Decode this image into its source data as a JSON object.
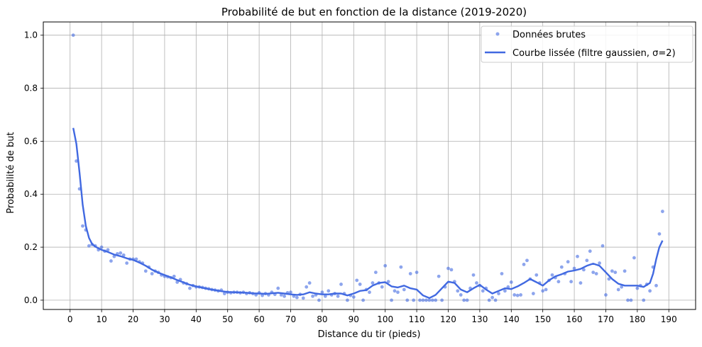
{
  "chart_data": {
    "type": "scatter",
    "title": "Probabilité de but en fonction de la distance (2019-2020)",
    "xlabel": "Distance du tir (pieds)",
    "ylabel": "Probabilité de but",
    "xlim": [
      -8.5,
      198.5
    ],
    "ylim": [
      -0.035,
      1.05
    ],
    "xticks": [
      0,
      10,
      20,
      30,
      40,
      50,
      60,
      70,
      80,
      90,
      100,
      110,
      120,
      130,
      140,
      150,
      160,
      170,
      180,
      190
    ],
    "yticks": [
      0.0,
      0.2,
      0.4,
      0.6,
      0.8,
      1.0
    ],
    "ytick_labels": [
      "0.0",
      "0.2",
      "0.4",
      "0.6",
      "0.8",
      "1.0"
    ],
    "grid": true,
    "legend_position": "top-right",
    "series": [
      {
        "name": "Données brutes",
        "kind": "scatter",
        "color": "#4169e1",
        "points": [
          [
            1,
            1.0
          ],
          [
            2,
            0.525
          ],
          [
            3,
            0.42
          ],
          [
            4,
            0.28
          ],
          [
            5,
            0.265
          ],
          [
            6,
            0.205
          ],
          [
            7,
            0.21
          ],
          [
            8,
            0.205
          ],
          [
            9,
            0.19
          ],
          [
            10,
            0.2
          ],
          [
            11,
            0.185
          ],
          [
            12,
            0.19
          ],
          [
            13,
            0.148
          ],
          [
            14,
            0.165
          ],
          [
            15,
            0.175
          ],
          [
            16,
            0.178
          ],
          [
            17,
            0.17
          ],
          [
            18,
            0.14
          ],
          [
            19,
            0.155
          ],
          [
            20,
            0.155
          ],
          [
            21,
            0.155
          ],
          [
            22,
            0.145
          ],
          [
            23,
            0.14
          ],
          [
            24,
            0.11
          ],
          [
            25,
            0.125
          ],
          [
            26,
            0.1
          ],
          [
            27,
            0.11
          ],
          [
            28,
            0.105
          ],
          [
            29,
            0.095
          ],
          [
            30,
            0.09
          ],
          [
            31,
            0.088
          ],
          [
            32,
            0.085
          ],
          [
            33,
            0.09
          ],
          [
            34,
            0.068
          ],
          [
            35,
            0.078
          ],
          [
            36,
            0.065
          ],
          [
            37,
            0.062
          ],
          [
            38,
            0.045
          ],
          [
            39,
            0.055
          ],
          [
            40,
            0.05
          ],
          [
            41,
            0.05
          ],
          [
            42,
            0.048
          ],
          [
            43,
            0.045
          ],
          [
            44,
            0.043
          ],
          [
            45,
            0.04
          ],
          [
            46,
            0.038
          ],
          [
            47,
            0.035
          ],
          [
            48,
            0.038
          ],
          [
            49,
            0.025
          ],
          [
            50,
            0.03
          ],
          [
            51,
            0.028
          ],
          [
            52,
            0.03
          ],
          [
            53,
            0.03
          ],
          [
            54,
            0.028
          ],
          [
            55,
            0.03
          ],
          [
            56,
            0.025
          ],
          [
            57,
            0.028
          ],
          [
            58,
            0.025
          ],
          [
            59,
            0.02
          ],
          [
            60,
            0.028
          ],
          [
            61,
            0.018
          ],
          [
            62,
            0.025
          ],
          [
            63,
            0.02
          ],
          [
            64,
            0.03
          ],
          [
            65,
            0.022
          ],
          [
            66,
            0.045
          ],
          [
            67,
            0.02
          ],
          [
            68,
            0.015
          ],
          [
            69,
            0.028
          ],
          [
            70,
            0.03
          ],
          [
            71,
            0.015
          ],
          [
            72,
            0.01
          ],
          [
            73,
            0.022
          ],
          [
            74,
            0.008
          ],
          [
            75,
            0.05
          ],
          [
            76,
            0.065
          ],
          [
            77,
            0.015
          ],
          [
            78,
            0.02
          ],
          [
            79,
            0.0
          ],
          [
            80,
            0.03
          ],
          [
            81,
            0.015
          ],
          [
            82,
            0.035
          ],
          [
            83,
            0.02
          ],
          [
            84,
            0.025
          ],
          [
            85,
            0.015
          ],
          [
            86,
            0.06
          ],
          [
            87,
            0.025
          ],
          [
            88,
            0.0
          ],
          [
            89,
            0.018
          ],
          [
            90,
            0.012
          ],
          [
            91,
            0.075
          ],
          [
            92,
            0.06
          ],
          [
            93,
            0.0
          ],
          [
            94,
            0.04
          ],
          [
            95,
            0.03
          ],
          [
            96,
            0.065
          ],
          [
            97,
            0.105
          ],
          [
            98,
            0.065
          ],
          [
            99,
            0.05
          ],
          [
            100,
            0.13
          ],
          [
            101,
            0.07
          ],
          [
            102,
            0.0
          ],
          [
            103,
            0.035
          ],
          [
            104,
            0.03
          ],
          [
            105,
            0.125
          ],
          [
            106,
            0.04
          ],
          [
            107,
            0.0
          ],
          [
            108,
            0.1
          ],
          [
            109,
            0.0
          ],
          [
            110,
            0.105
          ],
          [
            111,
            0.0
          ],
          [
            112,
            0.0
          ],
          [
            113,
            0.0
          ],
          [
            114,
            0.0
          ],
          [
            115,
            0.0
          ],
          [
            116,
            0.0
          ],
          [
            117,
            0.09
          ],
          [
            118,
            0.0
          ],
          [
            119,
            0.05
          ],
          [
            120,
            0.12
          ],
          [
            121,
            0.115
          ],
          [
            122,
            0.07
          ],
          [
            123,
            0.035
          ],
          [
            124,
            0.02
          ],
          [
            125,
            0.0
          ],
          [
            126,
            0.0
          ],
          [
            127,
            0.045
          ],
          [
            128,
            0.095
          ],
          [
            129,
            0.065
          ],
          [
            130,
            0.055
          ],
          [
            131,
            0.035
          ],
          [
            132,
            0.045
          ],
          [
            133,
            0.0
          ],
          [
            134,
            0.01
          ],
          [
            135,
            0.0
          ],
          [
            136,
            0.025
          ],
          [
            137,
            0.1
          ],
          [
            138,
            0.035
          ],
          [
            139,
            0.05
          ],
          [
            140,
            0.068
          ],
          [
            141,
            0.02
          ],
          [
            142,
            0.018
          ],
          [
            143,
            0.02
          ],
          [
            144,
            0.135
          ],
          [
            145,
            0.15
          ],
          [
            146,
            0.08
          ],
          [
            147,
            0.025
          ],
          [
            148,
            0.095
          ],
          [
            149,
            0.065
          ],
          [
            150,
            0.035
          ],
          [
            151,
            0.04
          ],
          [
            152,
            0.075
          ],
          [
            153,
            0.095
          ],
          [
            154,
            0.085
          ],
          [
            155,
            0.07
          ],
          [
            156,
            0.125
          ],
          [
            157,
            0.1
          ],
          [
            158,
            0.145
          ],
          [
            159,
            0.07
          ],
          [
            160,
            0.12
          ],
          [
            161,
            0.165
          ],
          [
            162,
            0.065
          ],
          [
            163,
            0.115
          ],
          [
            164,
            0.15
          ],
          [
            165,
            0.185
          ],
          [
            166,
            0.105
          ],
          [
            167,
            0.1
          ],
          [
            168,
            0.14
          ],
          [
            169,
            0.205
          ],
          [
            170,
            0.02
          ],
          [
            171,
            0.08
          ],
          [
            172,
            0.11
          ],
          [
            173,
            0.105
          ],
          [
            174,
            0.04
          ],
          [
            175,
            0.05
          ],
          [
            176,
            0.11
          ],
          [
            177,
            0.0
          ],
          [
            178,
            0.0
          ],
          [
            179,
            0.16
          ],
          [
            180,
            0.045
          ],
          [
            181,
            0.055
          ],
          [
            182,
            0.0
          ],
          [
            183,
            0.06
          ],
          [
            184,
            0.035
          ],
          [
            185,
            0.125
          ],
          [
            186,
            0.055
          ],
          [
            187,
            0.25
          ],
          [
            188,
            0.335
          ]
        ]
      },
      {
        "name": "Courbe lissée (filtre gaussien, σ=2)",
        "kind": "line",
        "color": "#4169e1",
        "points": [
          [
            1,
            0.65
          ],
          [
            2,
            0.59
          ],
          [
            3,
            0.48
          ],
          [
            4,
            0.36
          ],
          [
            5,
            0.28
          ],
          [
            6,
            0.235
          ],
          [
            7,
            0.212
          ],
          [
            8,
            0.202
          ],
          [
            9,
            0.196
          ],
          [
            10,
            0.19
          ],
          [
            12,
            0.182
          ],
          [
            14,
            0.172
          ],
          [
            16,
            0.166
          ],
          [
            18,
            0.158
          ],
          [
            20,
            0.152
          ],
          [
            22,
            0.142
          ],
          [
            24,
            0.13
          ],
          [
            26,
            0.115
          ],
          [
            28,
            0.104
          ],
          [
            30,
            0.095
          ],
          [
            32,
            0.086
          ],
          [
            34,
            0.076
          ],
          [
            36,
            0.067
          ],
          [
            38,
            0.058
          ],
          [
            40,
            0.052
          ],
          [
            42,
            0.047
          ],
          [
            44,
            0.042
          ],
          [
            46,
            0.038
          ],
          [
            48,
            0.034
          ],
          [
            50,
            0.031
          ],
          [
            52,
            0.03
          ],
          [
            54,
            0.029
          ],
          [
            56,
            0.028
          ],
          [
            58,
            0.026
          ],
          [
            60,
            0.025
          ],
          [
            62,
            0.024
          ],
          [
            64,
            0.026
          ],
          [
            66,
            0.028
          ],
          [
            68,
            0.025
          ],
          [
            70,
            0.022
          ],
          [
            72,
            0.02
          ],
          [
            74,
            0.022
          ],
          [
            76,
            0.03
          ],
          [
            78,
            0.025
          ],
          [
            80,
            0.022
          ],
          [
            82,
            0.022
          ],
          [
            84,
            0.025
          ],
          [
            86,
            0.025
          ],
          [
            88,
            0.018
          ],
          [
            90,
            0.025
          ],
          [
            92,
            0.035
          ],
          [
            94,
            0.038
          ],
          [
            96,
            0.055
          ],
          [
            98,
            0.065
          ],
          [
            100,
            0.068
          ],
          [
            102,
            0.052
          ],
          [
            104,
            0.048
          ],
          [
            106,
            0.055
          ],
          [
            108,
            0.045
          ],
          [
            110,
            0.04
          ],
          [
            112,
            0.018
          ],
          [
            114,
            0.008
          ],
          [
            116,
            0.02
          ],
          [
            118,
            0.045
          ],
          [
            120,
            0.07
          ],
          [
            122,
            0.065
          ],
          [
            124,
            0.04
          ],
          [
            126,
            0.03
          ],
          [
            128,
            0.045
          ],
          [
            130,
            0.058
          ],
          [
            132,
            0.04
          ],
          [
            134,
            0.025
          ],
          [
            136,
            0.035
          ],
          [
            138,
            0.045
          ],
          [
            140,
            0.042
          ],
          [
            142,
            0.052
          ],
          [
            144,
            0.065
          ],
          [
            146,
            0.08
          ],
          [
            148,
            0.068
          ],
          [
            150,
            0.055
          ],
          [
            152,
            0.075
          ],
          [
            154,
            0.09
          ],
          [
            156,
            0.098
          ],
          [
            158,
            0.108
          ],
          [
            160,
            0.112
          ],
          [
            162,
            0.118
          ],
          [
            164,
            0.13
          ],
          [
            166,
            0.138
          ],
          [
            168,
            0.13
          ],
          [
            170,
            0.105
          ],
          [
            172,
            0.08
          ],
          [
            174,
            0.062
          ],
          [
            176,
            0.055
          ],
          [
            178,
            0.055
          ],
          [
            180,
            0.055
          ],
          [
            182,
            0.05
          ],
          [
            184,
            0.065
          ],
          [
            185,
            0.1
          ],
          [
            186,
            0.155
          ],
          [
            187,
            0.2
          ],
          [
            188,
            0.225
          ]
        ]
      }
    ]
  }
}
